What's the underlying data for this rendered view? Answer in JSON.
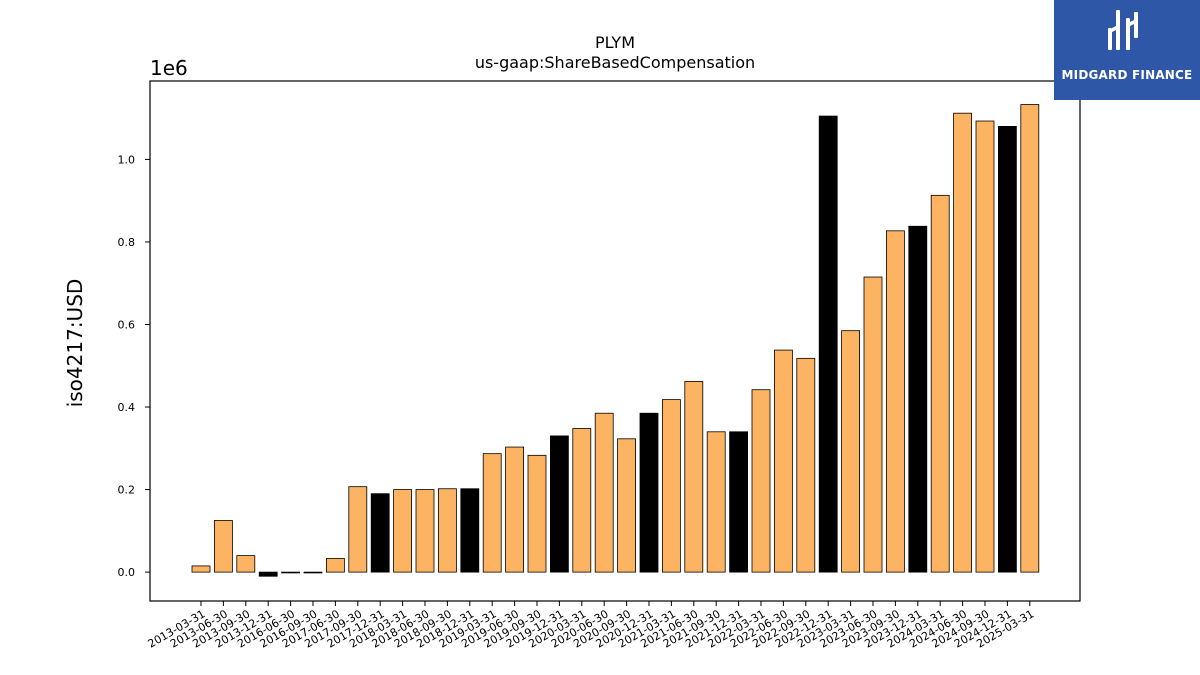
{
  "logo": {
    "text": "MIDGARD FINANCE",
    "bg_color": "#2f57a8"
  },
  "chart_data": {
    "type": "bar",
    "title": "PLYM",
    "subtitle": "us-gaap:ShareBasedCompensation",
    "xlabel": "",
    "ylabel": "iso4217:USD",
    "y_scale_label": "1e6",
    "ylim": [
      -70000,
      1190000
    ],
    "yticks": [
      0.0,
      0.2,
      0.4,
      0.6,
      0.8,
      1.0
    ],
    "ytick_labels": [
      "0.0",
      "0.2",
      "0.4",
      "0.6",
      "0.8",
      "1.0"
    ],
    "grid": false,
    "legend": "none",
    "colors": {
      "default": "#fdb462",
      "highlight": "#000000",
      "edge": "#000000"
    },
    "categories": [
      "2013-03-31",
      "2013-06-30",
      "2013-09-30",
      "2013-12-31",
      "2016-06-30",
      "2016-09-30",
      "2017-06-30",
      "2017-09-30",
      "2017-12-31",
      "2018-03-31",
      "2018-06-30",
      "2018-09-30",
      "2018-12-31",
      "2019-03-31",
      "2019-06-30",
      "2019-09-30",
      "2019-12-31",
      "2020-03-31",
      "2020-06-30",
      "2020-09-30",
      "2020-12-31",
      "2021-03-31",
      "2021-06-30",
      "2021-09-30",
      "2021-12-31",
      "2022-03-31",
      "2022-06-30",
      "2022-09-30",
      "2022-12-31",
      "2023-03-31",
      "2023-06-30",
      "2023-09-30",
      "2023-12-31",
      "2024-03-31",
      "2024-06-30",
      "2024-09-30",
      "2024-12-31",
      "2025-03-31"
    ],
    "values": [
      15000,
      125000,
      40000,
      -10000,
      -2000,
      -2000,
      33000,
      207000,
      190000,
      200000,
      200000,
      202000,
      202000,
      287000,
      303000,
      283000,
      330000,
      348000,
      385000,
      323000,
      385000,
      418000,
      462000,
      340000,
      340000,
      442000,
      538000,
      518000,
      1105000,
      585000,
      715000,
      827000,
      838000,
      913000,
      1112000,
      1093000,
      1080000,
      1133000
    ],
    "highlighted": [
      false,
      false,
      false,
      true,
      true,
      true,
      false,
      false,
      true,
      false,
      false,
      false,
      true,
      false,
      false,
      false,
      true,
      false,
      false,
      false,
      true,
      false,
      false,
      false,
      true,
      false,
      false,
      false,
      true,
      false,
      false,
      false,
      true,
      false,
      false,
      false,
      true,
      false
    ]
  }
}
